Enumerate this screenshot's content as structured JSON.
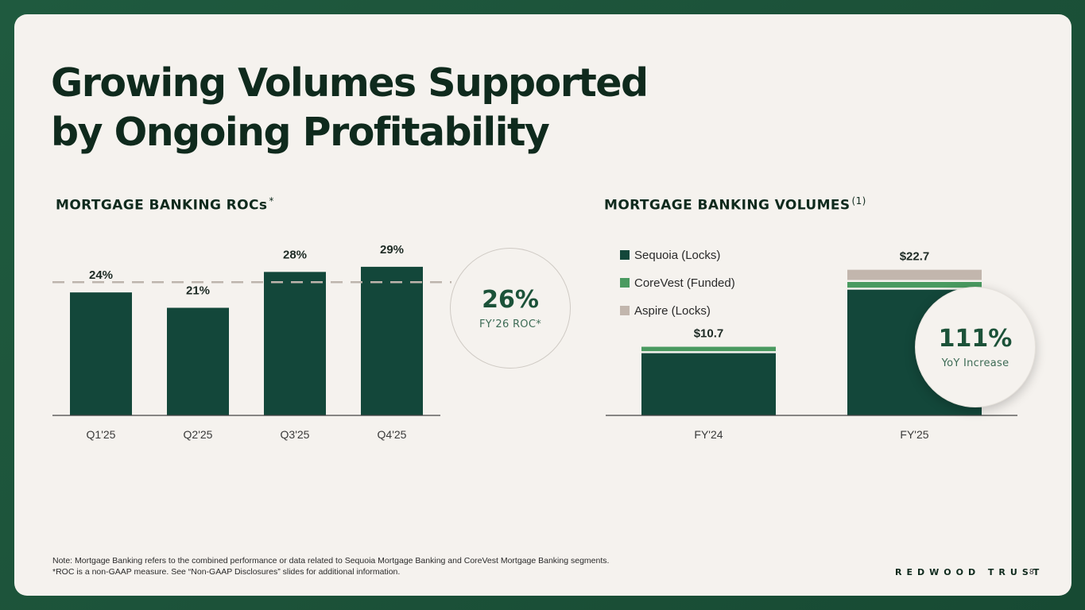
{
  "title": {
    "line1": "Growing Volumes Supported",
    "line2": "by Ongoing Profitability"
  },
  "colors": {
    "dark_green": "#13473a",
    "mid_green": "#4a9a60",
    "taupe": "#c2b6ad",
    "background": "#f5f2ee",
    "frame": "#1c5239",
    "reference_line": "#bdb4ac"
  },
  "roc_section": {
    "title": "MORTGAGE BANKING ROCs",
    "title_mark": "*",
    "stat_value": "26%",
    "stat_caption": "FY’26 ROC*"
  },
  "volumes_section": {
    "title": "MORTGAGE BANKING VOLUMES",
    "title_mark": "(1)",
    "stat_value": "111%",
    "stat_caption": "YoY Increase"
  },
  "chart_data": [
    {
      "type": "bar",
      "title": "MORTGAGE BANKING ROCs*",
      "categories": [
        "Q1'25",
        "Q2'25",
        "Q3'25",
        "Q4'25"
      ],
      "values": [
        24,
        21,
        28,
        29
      ],
      "value_labels": [
        "24%",
        "21%",
        "28%",
        "29%"
      ],
      "reference_line": 26,
      "ylim": [
        0,
        31
      ],
      "grid": false,
      "legend": "none"
    },
    {
      "type": "bar",
      "stacked": true,
      "title": "MORTGAGE BANKING VOLUMES(1)",
      "categories": [
        "FY'24",
        "FY'25"
      ],
      "series": [
        {
          "name": "Sequoia (Locks)",
          "values": [
            9.7,
            19.6
          ]
        },
        {
          "name": "CoreVest (Funded)",
          "values": [
            1.0,
            1.2
          ]
        },
        {
          "name": "Aspire (Locks)",
          "values": [
            0,
            1.9
          ]
        }
      ],
      "total_labels": [
        "$10.7",
        "$22.7"
      ],
      "ylim": [
        0,
        26
      ],
      "grid": false,
      "legend": "top-left"
    }
  ],
  "footer": {
    "note_line1": "Note: Mortgage Banking refers to the combined performance or data related to Sequoia Mortgage Banking and CoreVest Mortgage Banking segments.",
    "note_line2": "*ROC is a non-GAAP measure. See “Non-GAAP Disclosures” slides for additional information.",
    "brand": "REDWOOD TRUST",
    "page_number": "8"
  }
}
